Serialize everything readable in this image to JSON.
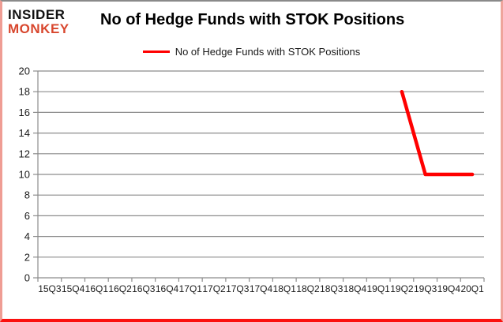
{
  "frame": {
    "border_top_color": "#8a8a8a",
    "border_side_color": "#ef9d94",
    "border_bottom_color": "#fb100e"
  },
  "logo": {
    "line1": "INSIDER",
    "line2": "MONKEY",
    "line1_color": "#111111",
    "line2_color": "#d8472e"
  },
  "header": {
    "title": "No of Hedge Funds with STOK Positions"
  },
  "legend": {
    "label": "No of Hedge Funds with STOK Positions",
    "swatch_color": "#ff0000"
  },
  "chart_data": {
    "type": "line",
    "title": "No of Hedge Funds with STOK Positions",
    "categories": [
      "15Q3",
      "15Q4",
      "16Q1",
      "16Q2",
      "16Q3",
      "16Q4",
      "17Q1",
      "17Q2",
      "17Q3",
      "17Q4",
      "18Q1",
      "18Q2",
      "18Q3",
      "18Q4",
      "19Q1",
      "19Q2",
      "19Q3",
      "19Q4",
      "20Q1"
    ],
    "series": [
      {
        "name": "No of Hedge Funds with STOK Positions",
        "color": "#ff0000",
        "values": [
          null,
          null,
          null,
          null,
          null,
          null,
          null,
          null,
          null,
          null,
          null,
          null,
          null,
          null,
          null,
          18,
          10,
          10,
          10
        ]
      }
    ],
    "xlabel": "",
    "ylabel": "",
    "ylim": [
      0,
      20
    ],
    "yticks": [
      0,
      2,
      4,
      6,
      8,
      10,
      12,
      14,
      16,
      18,
      20
    ],
    "grid": true,
    "gridline_color": "#8c8c8c",
    "axis_color": "#8c8c8c",
    "tick_label_color": "#1a1a1a",
    "legend_position": "top-center"
  }
}
